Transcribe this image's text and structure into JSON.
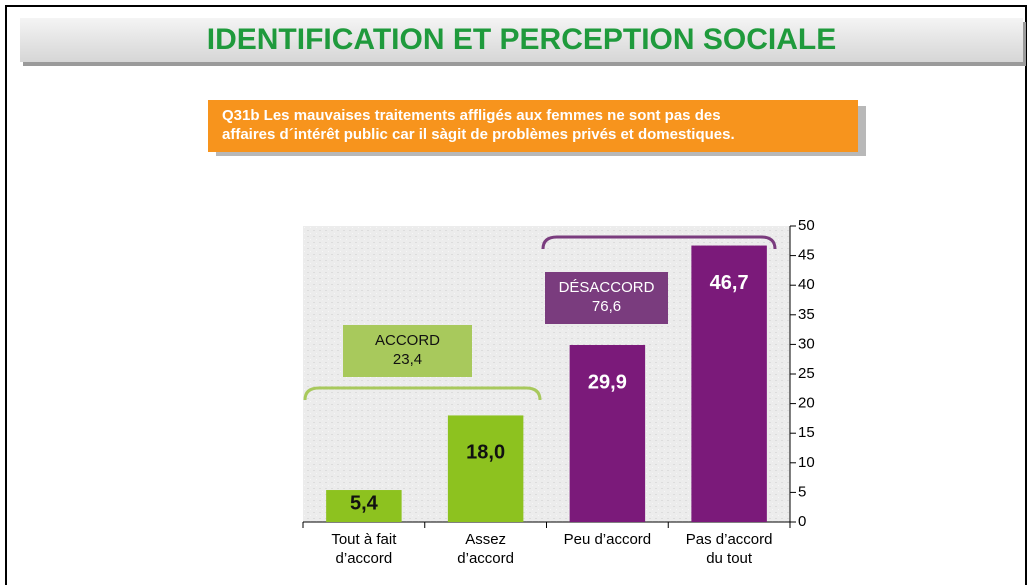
{
  "title": "IDENTIFICATION ET PERCEPTION SOCIALE",
  "question": "Q31b Les mauvaises traitements affligés aux femmes ne sont pas des\naffaires d´intérêt public car il sàgit de problèmes privés et domestiques.",
  "chart_data": {
    "type": "bar",
    "categories": [
      "Tout à fait\nd’accord",
      "Assez\nd’accord",
      "Peu d’accord",
      "Pas d’accord\ndu tout"
    ],
    "values": [
      5.4,
      18.0,
      29.9,
      46.7
    ],
    "value_labels": [
      "5,4",
      "18,0",
      "29,9",
      "46,7"
    ],
    "colors": [
      "#8dc21f",
      "#8dc21f",
      "#7b1a7a",
      "#7b1a7a"
    ],
    "ylim": [
      0,
      50
    ],
    "yticks": [
      0,
      5,
      10,
      15,
      20,
      25,
      30,
      35,
      40,
      45,
      50
    ],
    "groups": [
      {
        "label": "ACCORD",
        "value": 23.4,
        "value_label": "23,4",
        "color": "#a8c95c"
      },
      {
        "label": "DÉSACCORD",
        "value": 76.6,
        "value_label": "76,6",
        "color": "#7a3c7e"
      }
    ]
  }
}
